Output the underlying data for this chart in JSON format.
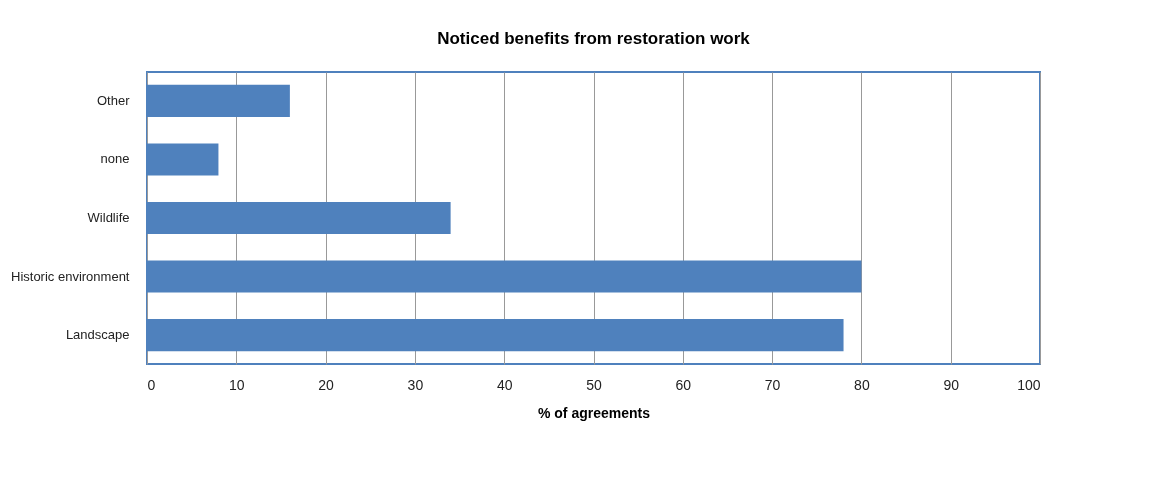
{
  "chart_data": {
    "type": "bar",
    "orientation": "horizontal",
    "title": "Noticed benefits from restoration work",
    "xlabel": "% of agreements",
    "categories": [
      "Other",
      "none",
      "Wildlife",
      "Historic environment",
      "Landscape"
    ],
    "values": [
      16,
      8,
      34,
      80,
      78
    ],
    "color": "#4f81bd",
    "xlim": [
      0,
      100
    ],
    "xticks": [
      0,
      10,
      20,
      30,
      40,
      50,
      60,
      70,
      80,
      90,
      100
    ],
    "grid": "x"
  }
}
